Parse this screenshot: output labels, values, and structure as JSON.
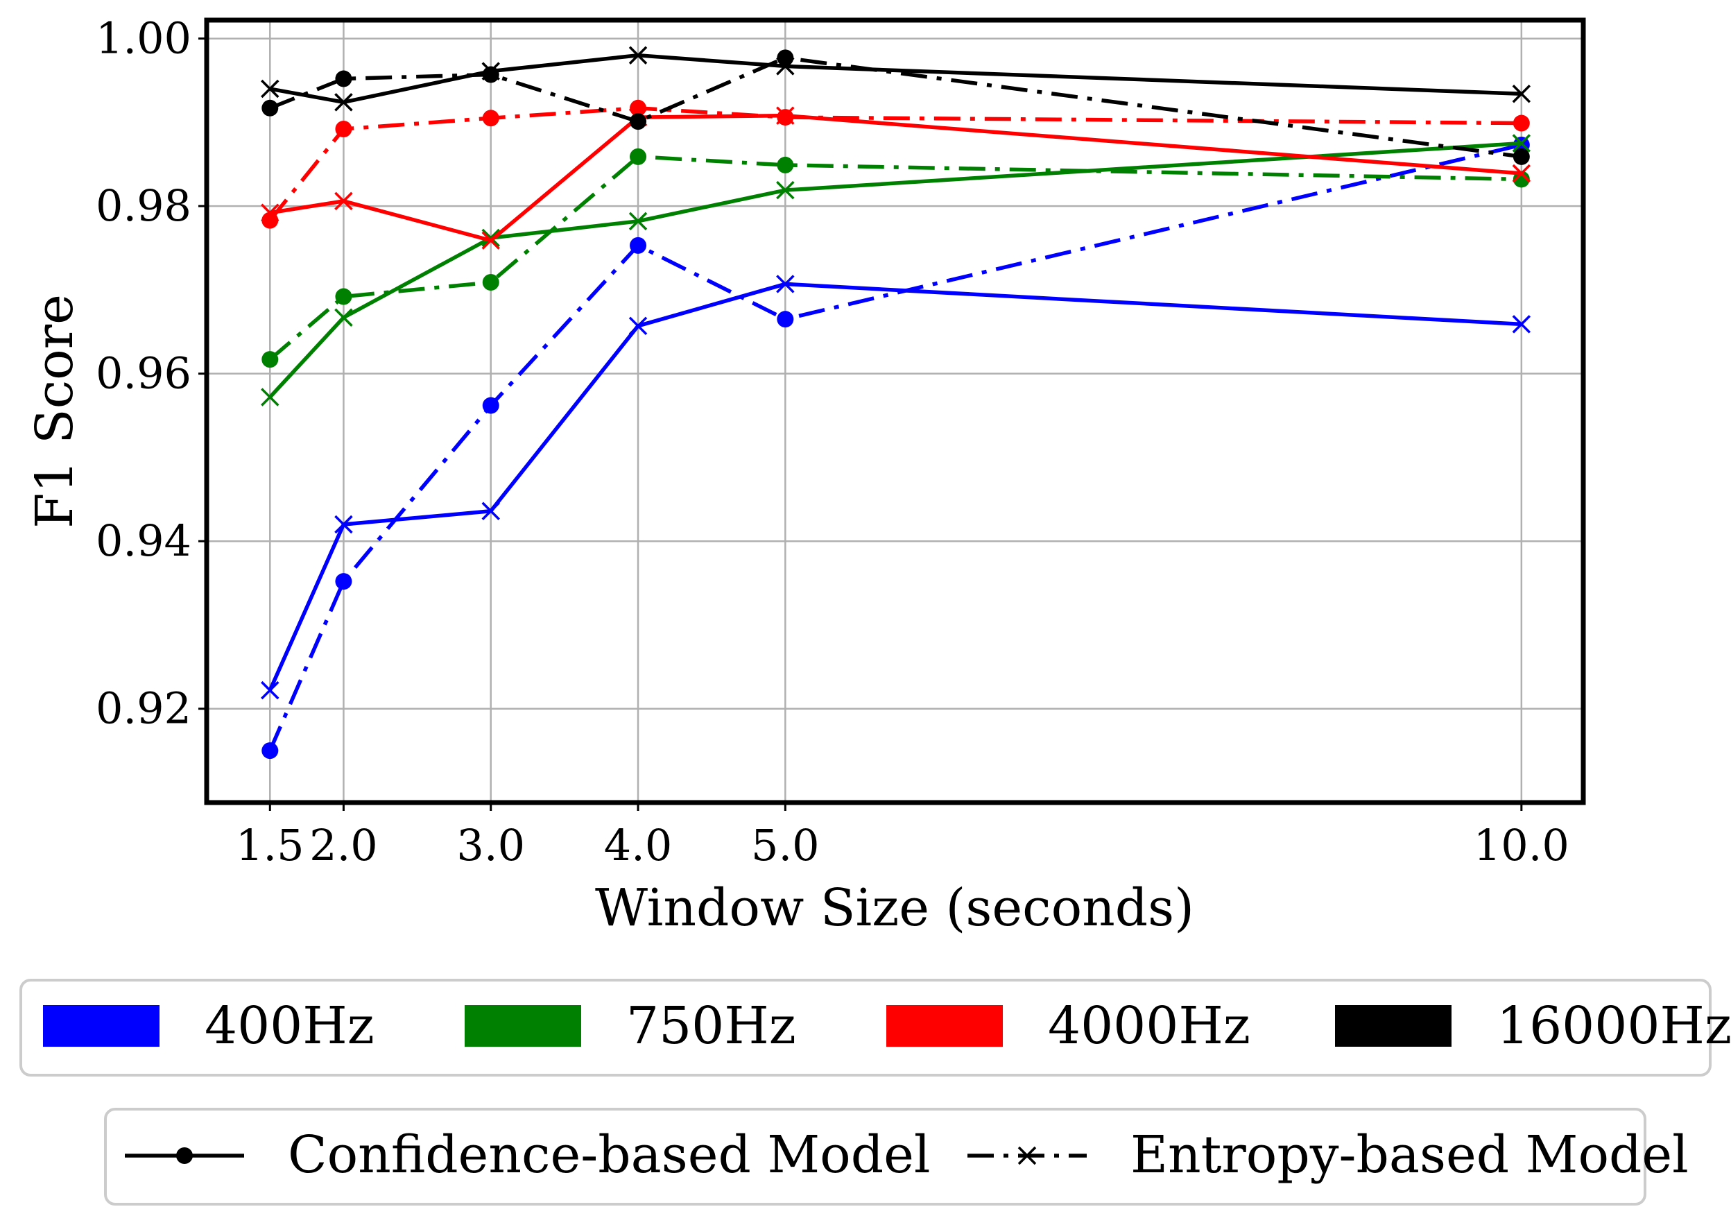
{
  "chart_data": {
    "type": "line",
    "xlabel": "Window Size (seconds)",
    "ylabel": "F1 Score",
    "x": [
      1.5,
      2.0,
      3.0,
      4.0,
      5.0,
      10.0
    ],
    "x_tick_labels": [
      "1.5",
      "2.0",
      "3.0",
      "4.0",
      "5.0",
      "10.0"
    ],
    "y_ticks": [
      0.92,
      0.94,
      0.96,
      0.98,
      1.0
    ],
    "y_tick_labels": [
      "0.92",
      "0.94",
      "0.96",
      "0.98",
      "1.00"
    ],
    "xlim": [
      1.07,
      10.42
    ],
    "ylim": [
      0.9088,
      1.0022
    ],
    "grid": true,
    "series": [
      {
        "name": "400Hz",
        "model": "Confidence-based Model",
        "color": "#0000ff",
        "values": [
          0.9222,
          0.942,
          0.9436,
          0.9657,
          0.9707,
          0.9659
        ]
      },
      {
        "name": "400Hz",
        "model": "Entropy-based Model",
        "color": "#0000ff",
        "values": [
          0.915,
          0.9352,
          0.9562,
          0.9753,
          0.9665,
          0.9873
        ]
      },
      {
        "name": "750Hz",
        "model": "Confidence-based Model",
        "color": "#008000",
        "values": [
          0.9572,
          0.9667,
          0.9762,
          0.9782,
          0.9819,
          0.9875
        ]
      },
      {
        "name": "750Hz",
        "model": "Entropy-based Model",
        "color": "#008000",
        "values": [
          0.9617,
          0.9692,
          0.9709,
          0.9859,
          0.9849,
          0.9832
        ]
      },
      {
        "name": "4000Hz",
        "model": "Confidence-based Model",
        "color": "#ff0000",
        "values": [
          0.9792,
          0.9806,
          0.9759,
          0.9906,
          0.9908,
          0.9839
        ]
      },
      {
        "name": "4000Hz",
        "model": "Entropy-based Model",
        "color": "#ff0000",
        "values": [
          0.9783,
          0.9892,
          0.9905,
          0.9917,
          0.9906,
          0.9899
        ]
      },
      {
        "name": "16000Hz",
        "model": "Confidence-based Model",
        "color": "#000000",
        "values": [
          0.994,
          0.9924,
          0.9961,
          0.998,
          0.9967,
          0.9934
        ]
      },
      {
        "name": "16000Hz",
        "model": "Entropy-based Model",
        "color": "#000000",
        "values": [
          0.9917,
          0.9952,
          0.9957,
          0.9901,
          0.9977,
          0.9859
        ]
      }
    ],
    "legend_colors": [
      {
        "label": "400Hz",
        "color": "#0000ff"
      },
      {
        "label": "750Hz",
        "color": "#008000"
      },
      {
        "label": "4000Hz",
        "color": "#ff0000"
      },
      {
        "label": "16000Hz",
        "color": "#000000"
      }
    ],
    "legend_models": [
      {
        "label": "Confidence-based Model",
        "line": "solid",
        "marker": "circle"
      },
      {
        "label": "Entropy-based Model",
        "line": "dash-dot",
        "marker": "x"
      }
    ],
    "legend_placement": "below"
  }
}
